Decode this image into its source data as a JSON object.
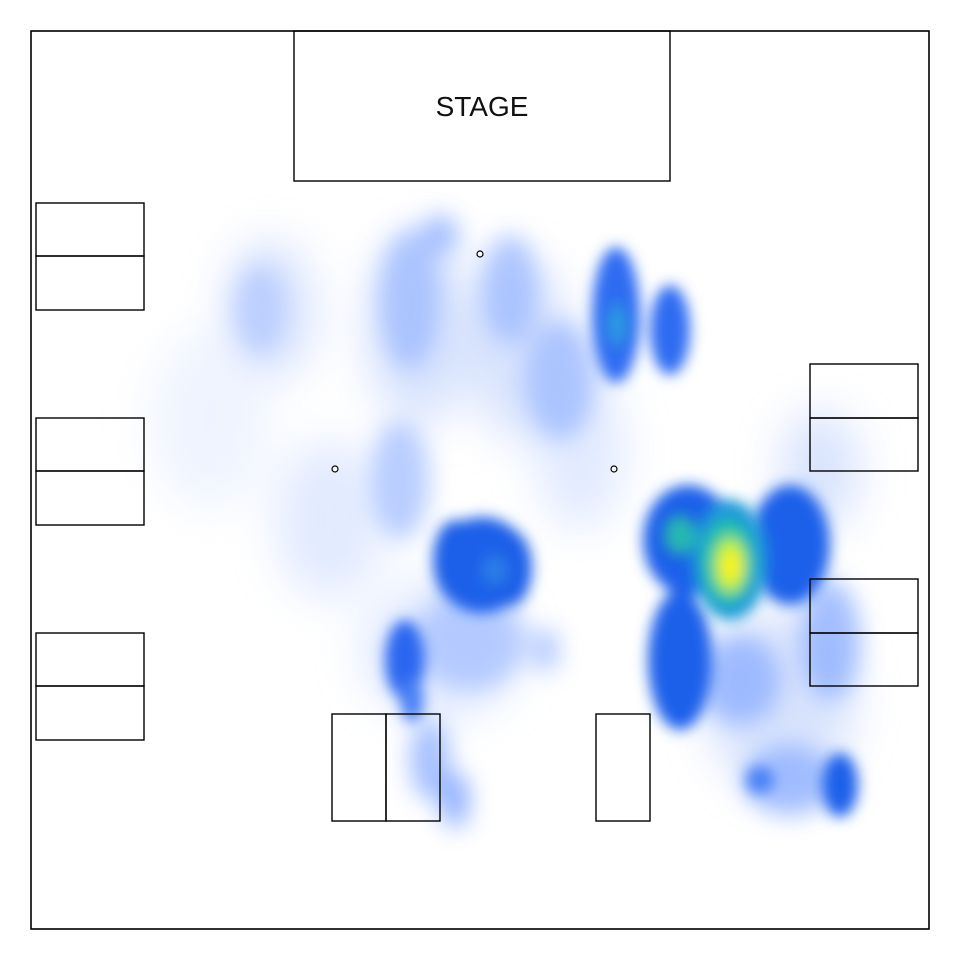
{
  "venue": {
    "stage_label": "STAGE"
  },
  "heatmap": {
    "description_kind": "crowd density heat map over venue floor plan",
    "color_scale": [
      "#ffffff",
      "#c9d9ff",
      "#7aa6ff",
      "#2f6cf2",
      "#1c5ee8",
      "#22c3a6",
      "#b8f23a",
      "#fff21a"
    ],
    "peak_color": "#fff21a",
    "low_color": "#c9d9ff"
  },
  "booths": {
    "left_column_count": 6,
    "right_column_count": 4,
    "bottom_units": 3
  },
  "pillars_count": 3
}
